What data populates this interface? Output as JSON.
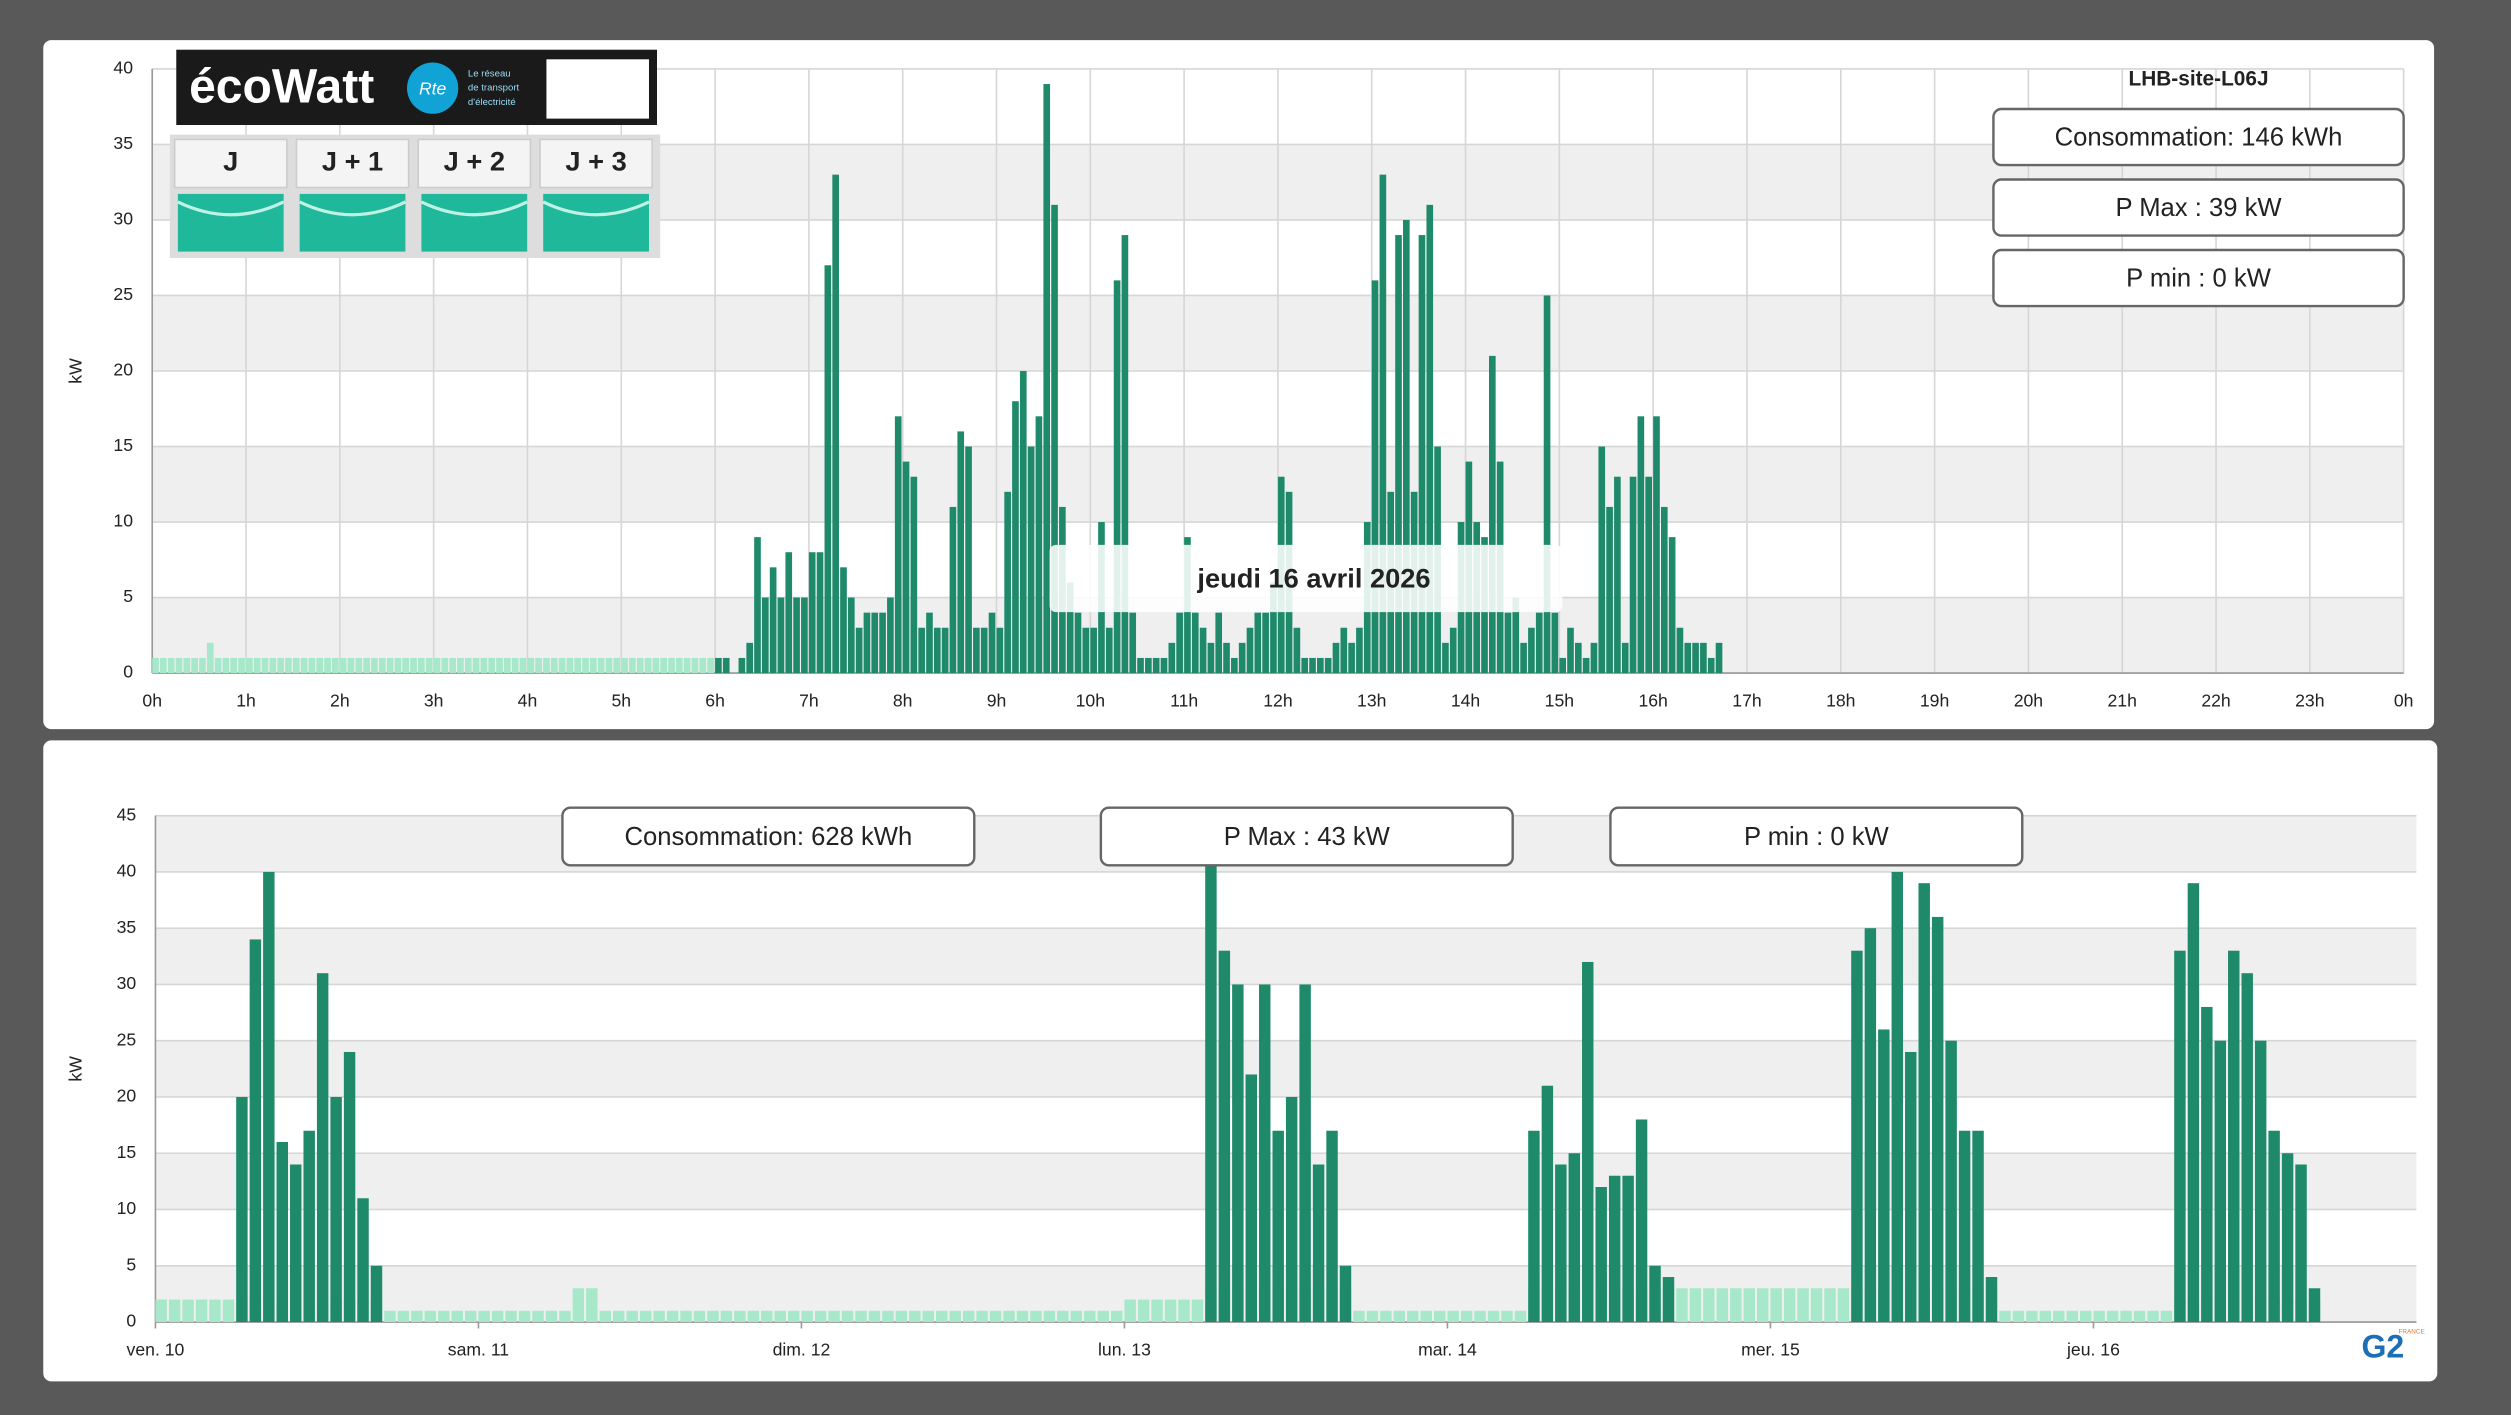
{
  "widget": {
    "brand": "écoWatt",
    "rte": "Rte",
    "rte_text": [
      "Le réseau",
      "de transport",
      "d'électricité"
    ],
    "days": [
      "J",
      "J + 1",
      "J + 2",
      "J + 3"
    ]
  },
  "logo": {
    "name": "G2",
    "country": "FRANCE"
  },
  "chart_data": [
    {
      "type": "bar",
      "title": "LHB-site-L06J",
      "ylabel": "kW",
      "annotations": [
        "Consommation: 146 kWh",
        "P Max :  39 kW",
        "P min : 0 kW"
      ],
      "tooltip": "jeudi 16 avril 2026",
      "xlim": [
        0,
        1440
      ],
      "xticks": [
        {
          "value": 0,
          "label": "0h"
        },
        {
          "value": 60,
          "label": "1h"
        },
        {
          "value": 120,
          "label": "2h"
        },
        {
          "value": 180,
          "label": "3h"
        },
        {
          "value": 240,
          "label": "4h"
        },
        {
          "value": 300,
          "label": "5h"
        },
        {
          "value": 360,
          "label": "6h"
        },
        {
          "value": 420,
          "label": "7h"
        },
        {
          "value": 480,
          "label": "8h"
        },
        {
          "value": 540,
          "label": "9h"
        },
        {
          "value": 600,
          "label": "10h"
        },
        {
          "value": 660,
          "label": "11h"
        },
        {
          "value": 720,
          "label": "12h"
        },
        {
          "value": 780,
          "label": "13h"
        },
        {
          "value": 840,
          "label": "14h"
        },
        {
          "value": 900,
          "label": "15h"
        },
        {
          "value": 960,
          "label": "16h"
        },
        {
          "value": 1020,
          "label": "17h"
        },
        {
          "value": 1080,
          "label": "18h"
        },
        {
          "value": 1140,
          "label": "19h"
        },
        {
          "value": 1200,
          "label": "20h"
        },
        {
          "value": 1260,
          "label": "21h"
        },
        {
          "value": 1320,
          "label": "22h"
        },
        {
          "value": 1380,
          "label": "23h"
        },
        {
          "value": 1440,
          "label": "0h"
        }
      ],
      "ylim": [
        0,
        40
      ],
      "yticks": [
        0,
        5,
        10,
        15,
        20,
        25,
        30,
        35,
        40
      ],
      "grid": true,
      "grid_x": true,
      "series": [
        {
          "color": "#a6e8c9",
          "x": [
            0,
            5,
            10,
            15,
            20,
            25,
            30,
            35,
            40,
            45,
            50,
            55,
            60,
            65,
            70,
            75,
            80,
            85,
            90,
            95,
            100,
            105,
            110,
            115,
            120,
            125,
            130,
            135,
            140,
            145,
            150,
            155,
            160,
            165,
            170,
            175,
            180,
            185,
            190,
            195,
            200,
            205,
            210,
            215,
            220,
            225,
            230,
            235,
            240,
            245,
            250,
            255,
            260,
            265,
            270,
            275,
            280,
            285,
            290,
            295,
            300,
            305,
            310,
            315,
            320,
            325,
            330,
            335,
            340,
            345,
            350,
            355
          ],
          "values": [
            1,
            1,
            1,
            1,
            1,
            1,
            1,
            2,
            1,
            1,
            1,
            1,
            1,
            1,
            1,
            1,
            1,
            1,
            1,
            1,
            1,
            1,
            1,
            1,
            1,
            1,
            1,
            1,
            1,
            1,
            1,
            1,
            1,
            1,
            1,
            1,
            1,
            1,
            1,
            1,
            1,
            1,
            1,
            1,
            1,
            1,
            1,
            1,
            1,
            1,
            1,
            1,
            1,
            1,
            1,
            1,
            1,
            1,
            1,
            1,
            1,
            1,
            1,
            1,
            1,
            1,
            1,
            1,
            1,
            1,
            1,
            1
          ]
        },
        {
          "color": "#1f8a6a",
          "x": [
            360,
            365,
            370,
            375,
            380,
            385,
            390,
            395,
            400,
            405,
            410,
            415,
            420,
            425,
            430,
            435,
            440,
            445,
            450,
            455,
            460,
            465,
            470,
            475,
            480,
            485,
            490,
            495,
            500,
            505,
            510,
            515,
            520,
            525,
            530,
            535,
            540,
            545,
            550,
            555,
            560,
            565,
            570,
            575,
            580,
            585,
            590,
            595,
            600,
            605,
            610,
            615,
            620,
            625,
            630,
            635,
            640,
            645,
            650,
            655,
            660,
            665,
            670,
            675,
            680,
            685,
            690,
            695,
            700,
            705,
            710,
            715,
            720,
            725,
            730,
            735,
            740,
            745,
            750,
            755,
            760,
            765,
            770,
            775,
            780,
            785,
            790,
            795,
            800,
            805,
            810,
            815,
            820,
            825,
            830,
            835,
            840,
            845,
            850,
            855,
            860,
            865,
            870,
            875,
            880,
            885,
            890,
            895,
            900,
            905,
            910,
            915,
            920,
            925,
            930,
            935,
            940,
            945,
            950,
            955,
            960,
            965,
            970,
            975,
            980,
            985,
            990,
            995,
            1000
          ],
          "values": [
            1,
            1,
            0,
            1,
            2,
            9,
            5,
            7,
            5,
            8,
            5,
            5,
            8,
            8,
            27,
            33,
            7,
            5,
            3,
            4,
            4,
            4,
            5,
            17,
            14,
            13,
            3,
            4,
            3,
            3,
            11,
            16,
            15,
            3,
            3,
            4,
            3,
            12,
            18,
            20,
            15,
            17,
            39,
            31,
            11,
            6,
            4,
            3,
            3,
            10,
            3,
            26,
            29,
            4,
            1,
            1,
            1,
            1,
            2,
            4,
            9,
            4,
            3,
            2,
            4,
            2,
            1,
            2,
            3,
            4,
            4,
            6,
            13,
            12,
            3,
            1,
            1,
            1,
            1,
            2,
            3,
            2,
            3,
            10,
            26,
            33,
            12,
            29,
            30,
            12,
            29,
            31,
            15,
            2,
            3,
            10,
            14,
            10,
            9,
            21,
            14,
            4,
            5,
            2,
            3,
            4,
            25,
            4,
            1,
            3,
            2,
            1,
            2,
            15,
            11,
            13,
            2,
            13,
            17,
            13,
            17,
            11,
            9,
            3,
            2,
            2,
            2,
            1,
            2
          ]
        }
      ]
    },
    {
      "type": "bar",
      "ylabel": "kW",
      "annotations": [
        "Consommation: 628 kWh",
        "P Max :  43 kW",
        "P min : 0 kW"
      ],
      "xlim": [
        0,
        168
      ],
      "xticks": [
        {
          "value": 0,
          "label": "ven. 10"
        },
        {
          "value": 24,
          "label": "sam. 11"
        },
        {
          "value": 48,
          "label": "dim. 12"
        },
        {
          "value": 72,
          "label": "lun. 13"
        },
        {
          "value": 96,
          "label": "mar. 14"
        },
        {
          "value": 120,
          "label": "mer. 15"
        },
        {
          "value": 144,
          "label": "jeu. 16"
        }
      ],
      "ylim": [
        0,
        45
      ],
      "yticks": [
        0,
        5,
        10,
        15,
        20,
        25,
        30,
        35,
        40,
        45
      ],
      "grid": true,
      "grid_x": false,
      "x": [
        0,
        1,
        2,
        3,
        4,
        5,
        6,
        7,
        8,
        9,
        10,
        11,
        12,
        13,
        14,
        15,
        16,
        17,
        18,
        19,
        20,
        21,
        22,
        23,
        24,
        25,
        26,
        27,
        28,
        29,
        30,
        31,
        32,
        33,
        34,
        35,
        36,
        37,
        38,
        39,
        40,
        41,
        42,
        43,
        44,
        45,
        46,
        47,
        48,
        49,
        50,
        51,
        52,
        53,
        54,
        55,
        56,
        57,
        58,
        59,
        60,
        61,
        62,
        63,
        64,
        65,
        66,
        67,
        68,
        69,
        70,
        71,
        72,
        73,
        74,
        75,
        76,
        77,
        78,
        79,
        80,
        81,
        82,
        83,
        84,
        85,
        86,
        87,
        88,
        89,
        90,
        91,
        92,
        93,
        94,
        95,
        96,
        97,
        98,
        99,
        100,
        101,
        102,
        103,
        104,
        105,
        106,
        107,
        108,
        109,
        110,
        111,
        112,
        113,
        114,
        115,
        116,
        117,
        118,
        119,
        120,
        121,
        122,
        123,
        124,
        125,
        126,
        127,
        128,
        129,
        130,
        131,
        132,
        133,
        134,
        135,
        136,
        137,
        138,
        139,
        140,
        141,
        142,
        143,
        144,
        145,
        146,
        147,
        148,
        149,
        150,
        151,
        152,
        153,
        154,
        155,
        156,
        157,
        158,
        159,
        160
      ],
      "series": [
        {
          "color": "#a6e8c9",
          "values": [
            2,
            2,
            2,
            2,
            2,
            2,
            2,
            2,
            2,
            2,
            2,
            2,
            2,
            2,
            2,
            2,
            2,
            1,
            1,
            1,
            1,
            1,
            1,
            1,
            1,
            1,
            1,
            1,
            1,
            1,
            1,
            3,
            3,
            1,
            1,
            1,
            1,
            1,
            1,
            1,
            1,
            1,
            1,
            1,
            1,
            1,
            1,
            1,
            1,
            1,
            1,
            1,
            1,
            1,
            1,
            1,
            1,
            1,
            1,
            1,
            1,
            1,
            1,
            1,
            1,
            1,
            1,
            1,
            1,
            1,
            1,
            1,
            2,
            2,
            2,
            2,
            2,
            2,
            3,
            3,
            3,
            3,
            3,
            3,
            3,
            3,
            3,
            3,
            3,
            1,
            1,
            1,
            1,
            1,
            1,
            1,
            1,
            1,
            1,
            1,
            1,
            1,
            3,
            3,
            3,
            3,
            3,
            3,
            3,
            3,
            3,
            3,
            3,
            3,
            3,
            3,
            3,
            3,
            3,
            3,
            3,
            3,
            3,
            3,
            3,
            3,
            3,
            3,
            3,
            3,
            3,
            3,
            3,
            3,
            3,
            3,
            3,
            1,
            1,
            1,
            1,
            1,
            1,
            1,
            1,
            1,
            1,
            1,
            1,
            1,
            2,
            2,
            2,
            2,
            2,
            2,
            2,
            2,
            2,
            2,
            2
          ]
        },
        {
          "color": "#1f8a6a",
          "values": [
            null,
            null,
            null,
            null,
            null,
            null,
            20,
            34,
            40,
            16,
            14,
            17,
            31,
            20,
            24,
            11,
            5,
            null,
            null,
            null,
            null,
            null,
            null,
            null,
            null,
            null,
            null,
            null,
            null,
            null,
            null,
            null,
            null,
            null,
            null,
            null,
            null,
            null,
            null,
            null,
            null,
            null,
            null,
            null,
            null,
            null,
            null,
            null,
            null,
            null,
            null,
            null,
            null,
            null,
            null,
            null,
            null,
            null,
            null,
            null,
            null,
            null,
            null,
            null,
            null,
            null,
            null,
            null,
            null,
            null,
            null,
            null,
            null,
            null,
            null,
            null,
            null,
            null,
            43,
            33,
            30,
            22,
            30,
            17,
            20,
            30,
            14,
            17,
            5,
            null,
            null,
            null,
            null,
            null,
            null,
            null,
            null,
            null,
            null,
            null,
            null,
            null,
            17,
            21,
            14,
            15,
            32,
            12,
            13,
            13,
            18,
            5,
            4,
            null,
            null,
            null,
            null,
            null,
            null,
            null,
            null,
            null,
            null,
            null,
            null,
            null,
            33,
            35,
            26,
            40,
            24,
            39,
            36,
            25,
            17,
            17,
            4,
            null,
            null,
            null,
            null,
            null,
            null,
            null,
            null,
            null,
            null,
            null,
            null,
            null,
            33,
            39,
            28,
            25,
            33,
            31,
            25,
            17,
            15,
            14,
            3
          ]
        }
      ]
    }
  ]
}
